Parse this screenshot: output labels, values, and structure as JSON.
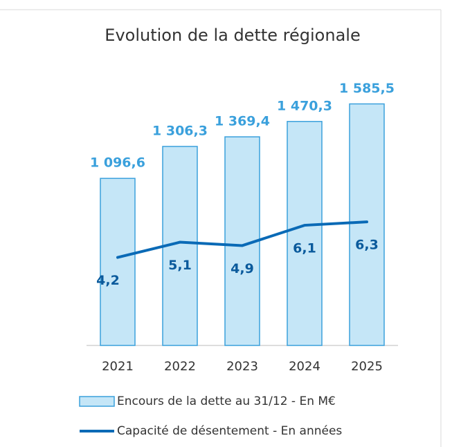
{
  "chart_data": {
    "type": "bar",
    "title": "Evolution de la dette régionale",
    "categories": [
      "2021",
      "2022",
      "2023",
      "2024",
      "2025"
    ],
    "ylim": [
      0,
      2000
    ],
    "y2lim": [
      -1,
      17
    ],
    "series": [
      {
        "name": "Encours de la dette au 31/12 - En M€",
        "type": "bar",
        "color": "#c5e6f7",
        "values": [
          1096.6,
          1306.3,
          1369.4,
          1470.3,
          1585.5
        ],
        "value_labels": [
          "1 096,6",
          "1 306,3",
          "1 369,4",
          "1 470,3",
          "1 585,5"
        ]
      },
      {
        "name": "Capacité de désentement - En années",
        "type": "line",
        "axis": "y2",
        "color": "#0a6ab6",
        "values": [
          4.2,
          5.1,
          4.9,
          6.1,
          6.3
        ],
        "value_labels": [
          "4,2",
          "5,1",
          "4,9",
          "6,1",
          "6,3"
        ]
      }
    ]
  }
}
